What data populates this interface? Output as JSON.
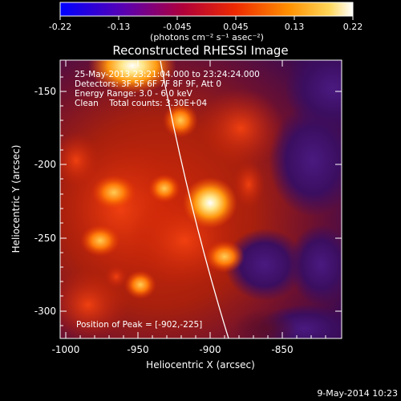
{
  "colorbar": {
    "ticks": [
      "-0.22",
      "-0.13",
      "-0.045",
      "0.045",
      "0.13",
      "0.22"
    ],
    "unit_label": "(photons cm⁻² s⁻¹ asec⁻²)"
  },
  "plot": {
    "title": "Reconstructed RHESSI Image",
    "xlabel": "Heliocentric X (arcsec)",
    "ylabel": "Heliocentric Y (arcsec)",
    "x_ticks": [
      "-1000",
      "-950",
      "-900",
      "-850"
    ],
    "y_ticks": [
      "-150",
      "-200",
      "-250",
      "-300"
    ],
    "info_lines": [
      "25-May-2013 23:21:04.000 to 23:24:24.000",
      "Detectors: 3F 5F 6F 7F 8F 9F, Att 0",
      "Energy Range: 3.0 - 6.0 keV",
      "Clean    Total counts: 3.30E+04"
    ],
    "peak_label": "Position of Peak = [-902,-225]"
  },
  "footer": {
    "timestamp": "9-May-2014 10:23"
  }
}
